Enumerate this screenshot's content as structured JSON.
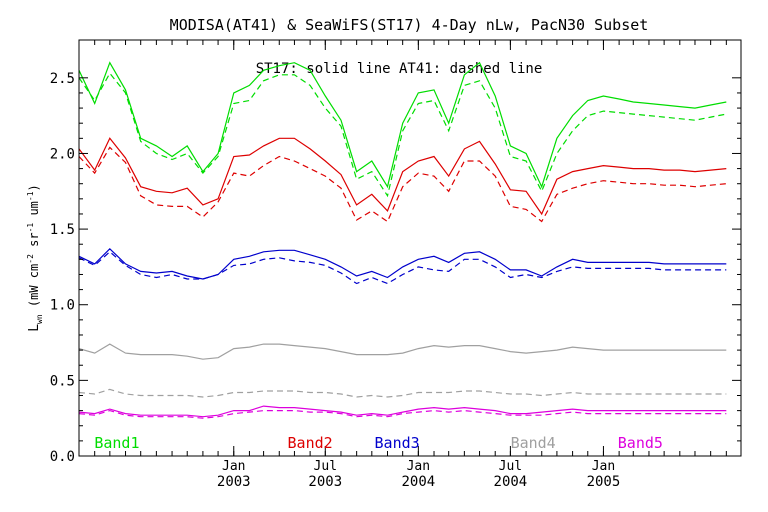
{
  "chart_data": {
    "type": "line",
    "title": "MODISA(AT41) & SeaWiFS(ST17) 4-Day nLw, PacN30 Subset",
    "annotation": "ST17: solid line   AT41: dashed line",
    "ylabel": "L_wn (mW cm^-2 sr^-1 um^-1)",
    "ylabel_main": "L",
    "ylabel_sub": "wn",
    "ylabel_units": "(mW cm",
    "ylabel_exp1": "-2",
    "ylabel_mid": " sr",
    "ylabel_exp2": "-1",
    "ylabel_end": " um",
    "ylabel_exp3": "-1",
    "ylabel_close": ")",
    "ylim": [
      0.0,
      2.75
    ],
    "xlim": [
      "2002-03-01",
      "2005-09-30"
    ],
    "y_ticks": [
      0.0,
      0.5,
      1.0,
      1.5,
      2.0,
      2.5
    ],
    "y_tick_labels": [
      "0.0",
      "0.5",
      "1.0",
      "1.5",
      "2.0",
      "2.5"
    ],
    "x_ticks": [
      {
        "date": "2003-01-01",
        "line1": "Jan",
        "line2": "2003"
      },
      {
        "date": "2003-07-01",
        "line1": "Jul",
        "line2": "2003"
      },
      {
        "date": "2004-01-01",
        "line1": "Jan",
        "line2": "2004"
      },
      {
        "date": "2004-07-01",
        "line1": "Jul",
        "line2": "2004"
      },
      {
        "date": "2005-01-01",
        "line1": "Jan",
        "line2": "2005"
      }
    ],
    "grid": false,
    "x": [
      "2002-03-01",
      "2002-04-01",
      "2002-05-01",
      "2002-06-01",
      "2002-07-01",
      "2002-08-01",
      "2002-09-01",
      "2002-10-01",
      "2002-11-01",
      "2002-12-01",
      "2003-01-01",
      "2003-02-01",
      "2003-03-01",
      "2003-04-01",
      "2003-05-01",
      "2003-06-01",
      "2003-07-01",
      "2003-08-01",
      "2003-09-01",
      "2003-10-01",
      "2003-11-01",
      "2003-12-01",
      "2004-01-01",
      "2004-02-01",
      "2004-03-01",
      "2004-04-01",
      "2004-05-01",
      "2004-06-01",
      "2004-07-01",
      "2004-08-01",
      "2004-09-01",
      "2004-10-01",
      "2004-11-01",
      "2004-12-01",
      "2005-01-01",
      "2005-02-01",
      "2005-03-01",
      "2005-04-01",
      "2005-05-01",
      "2005-06-01",
      "2005-07-01",
      "2005-08-01",
      "2005-09-01"
    ],
    "series": [
      {
        "name": "Band1",
        "color": "#00dd00",
        "label_date": "2002-05-15",
        "solid": [
          2.55,
          2.33,
          2.6,
          2.42,
          2.1,
          2.05,
          1.98,
          2.05,
          1.88,
          2.0,
          2.4,
          2.45,
          2.55,
          2.58,
          2.6,
          2.55,
          2.38,
          2.22,
          1.88,
          1.95,
          1.78,
          2.2,
          2.4,
          2.42,
          2.2,
          2.52,
          2.6,
          2.38,
          2.05,
          2.0,
          1.78,
          2.1,
          2.25,
          2.35,
          2.38,
          2.36,
          2.34,
          2.33,
          2.32,
          2.31,
          2.3,
          2.32,
          2.34
        ],
        "dashed": [
          2.5,
          2.35,
          2.53,
          2.4,
          2.08,
          2.0,
          1.96,
          2.0,
          1.87,
          1.98,
          2.33,
          2.35,
          2.48,
          2.52,
          2.52,
          2.45,
          2.3,
          2.18,
          1.83,
          1.88,
          1.72,
          2.15,
          2.33,
          2.35,
          2.15,
          2.45,
          2.48,
          2.3,
          1.98,
          1.95,
          1.75,
          2.0,
          2.15,
          2.25,
          2.28,
          2.27,
          2.26,
          2.25,
          2.24,
          2.23,
          2.22,
          2.24,
          2.26
        ]
      },
      {
        "name": "Band2",
        "color": "#dd0000",
        "label_date": "2003-06-01",
        "solid": [
          2.03,
          1.89,
          2.1,
          1.97,
          1.78,
          1.75,
          1.74,
          1.77,
          1.66,
          1.7,
          1.98,
          1.99,
          2.05,
          2.1,
          2.1,
          2.03,
          1.95,
          1.86,
          1.66,
          1.73,
          1.62,
          1.88,
          1.95,
          1.98,
          1.85,
          2.03,
          2.08,
          1.93,
          1.76,
          1.75,
          1.6,
          1.83,
          1.88,
          1.9,
          1.92,
          1.91,
          1.9,
          1.9,
          1.89,
          1.89,
          1.88,
          1.89,
          1.9
        ],
        "dashed": [
          1.98,
          1.87,
          2.04,
          1.94,
          1.72,
          1.66,
          1.65,
          1.65,
          1.58,
          1.68,
          1.87,
          1.85,
          1.92,
          1.98,
          1.95,
          1.9,
          1.85,
          1.77,
          1.56,
          1.62,
          1.55,
          1.78,
          1.87,
          1.85,
          1.75,
          1.95,
          1.95,
          1.85,
          1.65,
          1.63,
          1.55,
          1.73,
          1.77,
          1.8,
          1.82,
          1.81,
          1.8,
          1.8,
          1.79,
          1.79,
          1.78,
          1.79,
          1.8
        ]
      },
      {
        "name": "Band3",
        "color": "#0000cc",
        "label_date": "2003-11-20",
        "solid": [
          1.32,
          1.27,
          1.37,
          1.27,
          1.22,
          1.21,
          1.22,
          1.19,
          1.17,
          1.2,
          1.3,
          1.32,
          1.35,
          1.36,
          1.36,
          1.33,
          1.3,
          1.25,
          1.19,
          1.22,
          1.18,
          1.25,
          1.3,
          1.32,
          1.28,
          1.34,
          1.35,
          1.3,
          1.23,
          1.23,
          1.19,
          1.25,
          1.3,
          1.28,
          1.28,
          1.28,
          1.28,
          1.28,
          1.27,
          1.27,
          1.27,
          1.27,
          1.27
        ],
        "dashed": [
          1.31,
          1.26,
          1.35,
          1.26,
          1.2,
          1.18,
          1.2,
          1.17,
          1.17,
          1.2,
          1.26,
          1.27,
          1.3,
          1.31,
          1.29,
          1.28,
          1.26,
          1.21,
          1.14,
          1.18,
          1.14,
          1.2,
          1.25,
          1.23,
          1.22,
          1.3,
          1.3,
          1.25,
          1.18,
          1.2,
          1.18,
          1.22,
          1.25,
          1.24,
          1.24,
          1.24,
          1.24,
          1.24,
          1.23,
          1.23,
          1.23,
          1.23,
          1.23
        ]
      },
      {
        "name": "Band4",
        "color": "#a0a0a0",
        "label_date": "2004-08-15",
        "solid": [
          0.71,
          0.68,
          0.74,
          0.68,
          0.67,
          0.67,
          0.67,
          0.66,
          0.64,
          0.65,
          0.71,
          0.72,
          0.74,
          0.74,
          0.73,
          0.72,
          0.71,
          0.69,
          0.67,
          0.67,
          0.67,
          0.68,
          0.71,
          0.73,
          0.72,
          0.73,
          0.73,
          0.71,
          0.69,
          0.68,
          0.69,
          0.7,
          0.72,
          0.71,
          0.7,
          0.7,
          0.7,
          0.7,
          0.7,
          0.7,
          0.7,
          0.7,
          0.7
        ],
        "dashed": [
          0.42,
          0.41,
          0.44,
          0.41,
          0.4,
          0.4,
          0.4,
          0.4,
          0.39,
          0.4,
          0.42,
          0.42,
          0.43,
          0.43,
          0.43,
          0.42,
          0.42,
          0.41,
          0.39,
          0.4,
          0.39,
          0.4,
          0.42,
          0.42,
          0.42,
          0.43,
          0.43,
          0.42,
          0.41,
          0.41,
          0.4,
          0.41,
          0.42,
          0.41,
          0.41,
          0.41,
          0.41,
          0.41,
          0.41,
          0.41,
          0.41,
          0.41,
          0.41
        ]
      },
      {
        "name": "Band5",
        "color": "#dd00dd",
        "label_date": "2005-03-15",
        "solid": [
          0.29,
          0.28,
          0.31,
          0.28,
          0.27,
          0.27,
          0.27,
          0.27,
          0.26,
          0.27,
          0.3,
          0.3,
          0.33,
          0.32,
          0.32,
          0.31,
          0.3,
          0.29,
          0.27,
          0.28,
          0.27,
          0.29,
          0.31,
          0.32,
          0.31,
          0.32,
          0.31,
          0.3,
          0.28,
          0.28,
          0.29,
          0.3,
          0.31,
          0.3,
          0.3,
          0.3,
          0.3,
          0.3,
          0.3,
          0.3,
          0.3,
          0.3,
          0.3
        ],
        "dashed": [
          0.28,
          0.27,
          0.3,
          0.27,
          0.26,
          0.26,
          0.26,
          0.26,
          0.25,
          0.26,
          0.28,
          0.29,
          0.3,
          0.3,
          0.3,
          0.29,
          0.29,
          0.28,
          0.26,
          0.27,
          0.26,
          0.28,
          0.29,
          0.3,
          0.29,
          0.3,
          0.29,
          0.28,
          0.27,
          0.27,
          0.27,
          0.28,
          0.29,
          0.28,
          0.28,
          0.28,
          0.28,
          0.28,
          0.28,
          0.28,
          0.28,
          0.28,
          0.28
        ]
      }
    ]
  }
}
